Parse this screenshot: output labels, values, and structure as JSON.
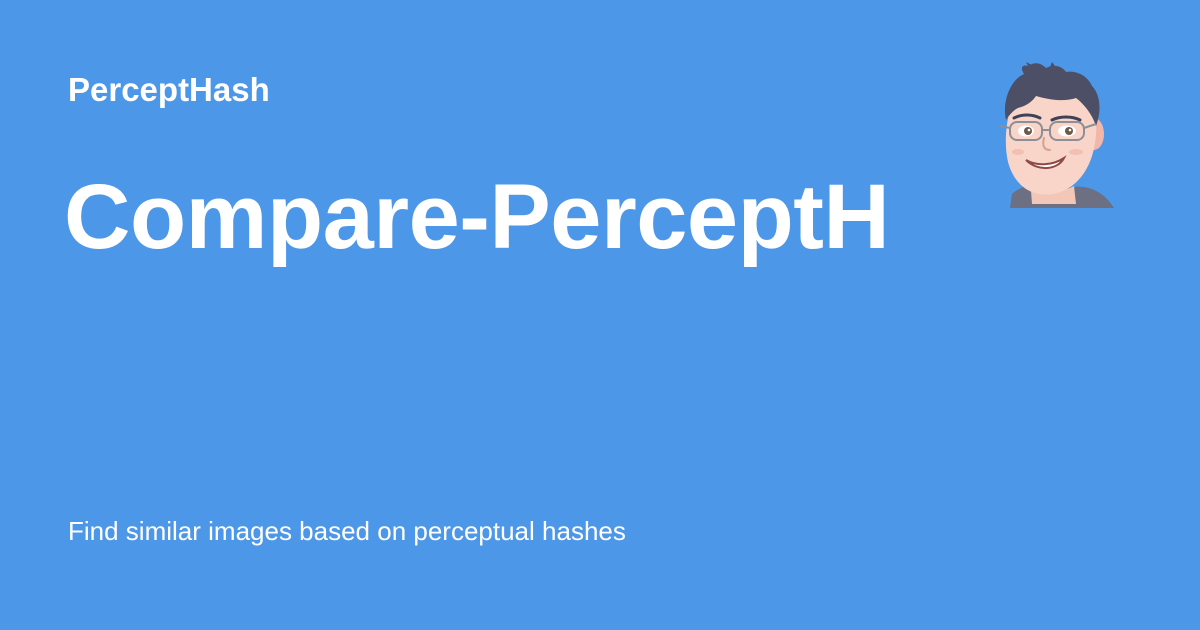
{
  "header": {
    "site_name": "PerceptHash"
  },
  "main": {
    "title": "Compare-PerceptHash",
    "description": "Find similar images based on perceptual hashes"
  },
  "avatar": {
    "icon": "cartoon-man-with-glasses-avatar"
  },
  "colors": {
    "background": "#4d97e8",
    "text": "#ffffff"
  }
}
